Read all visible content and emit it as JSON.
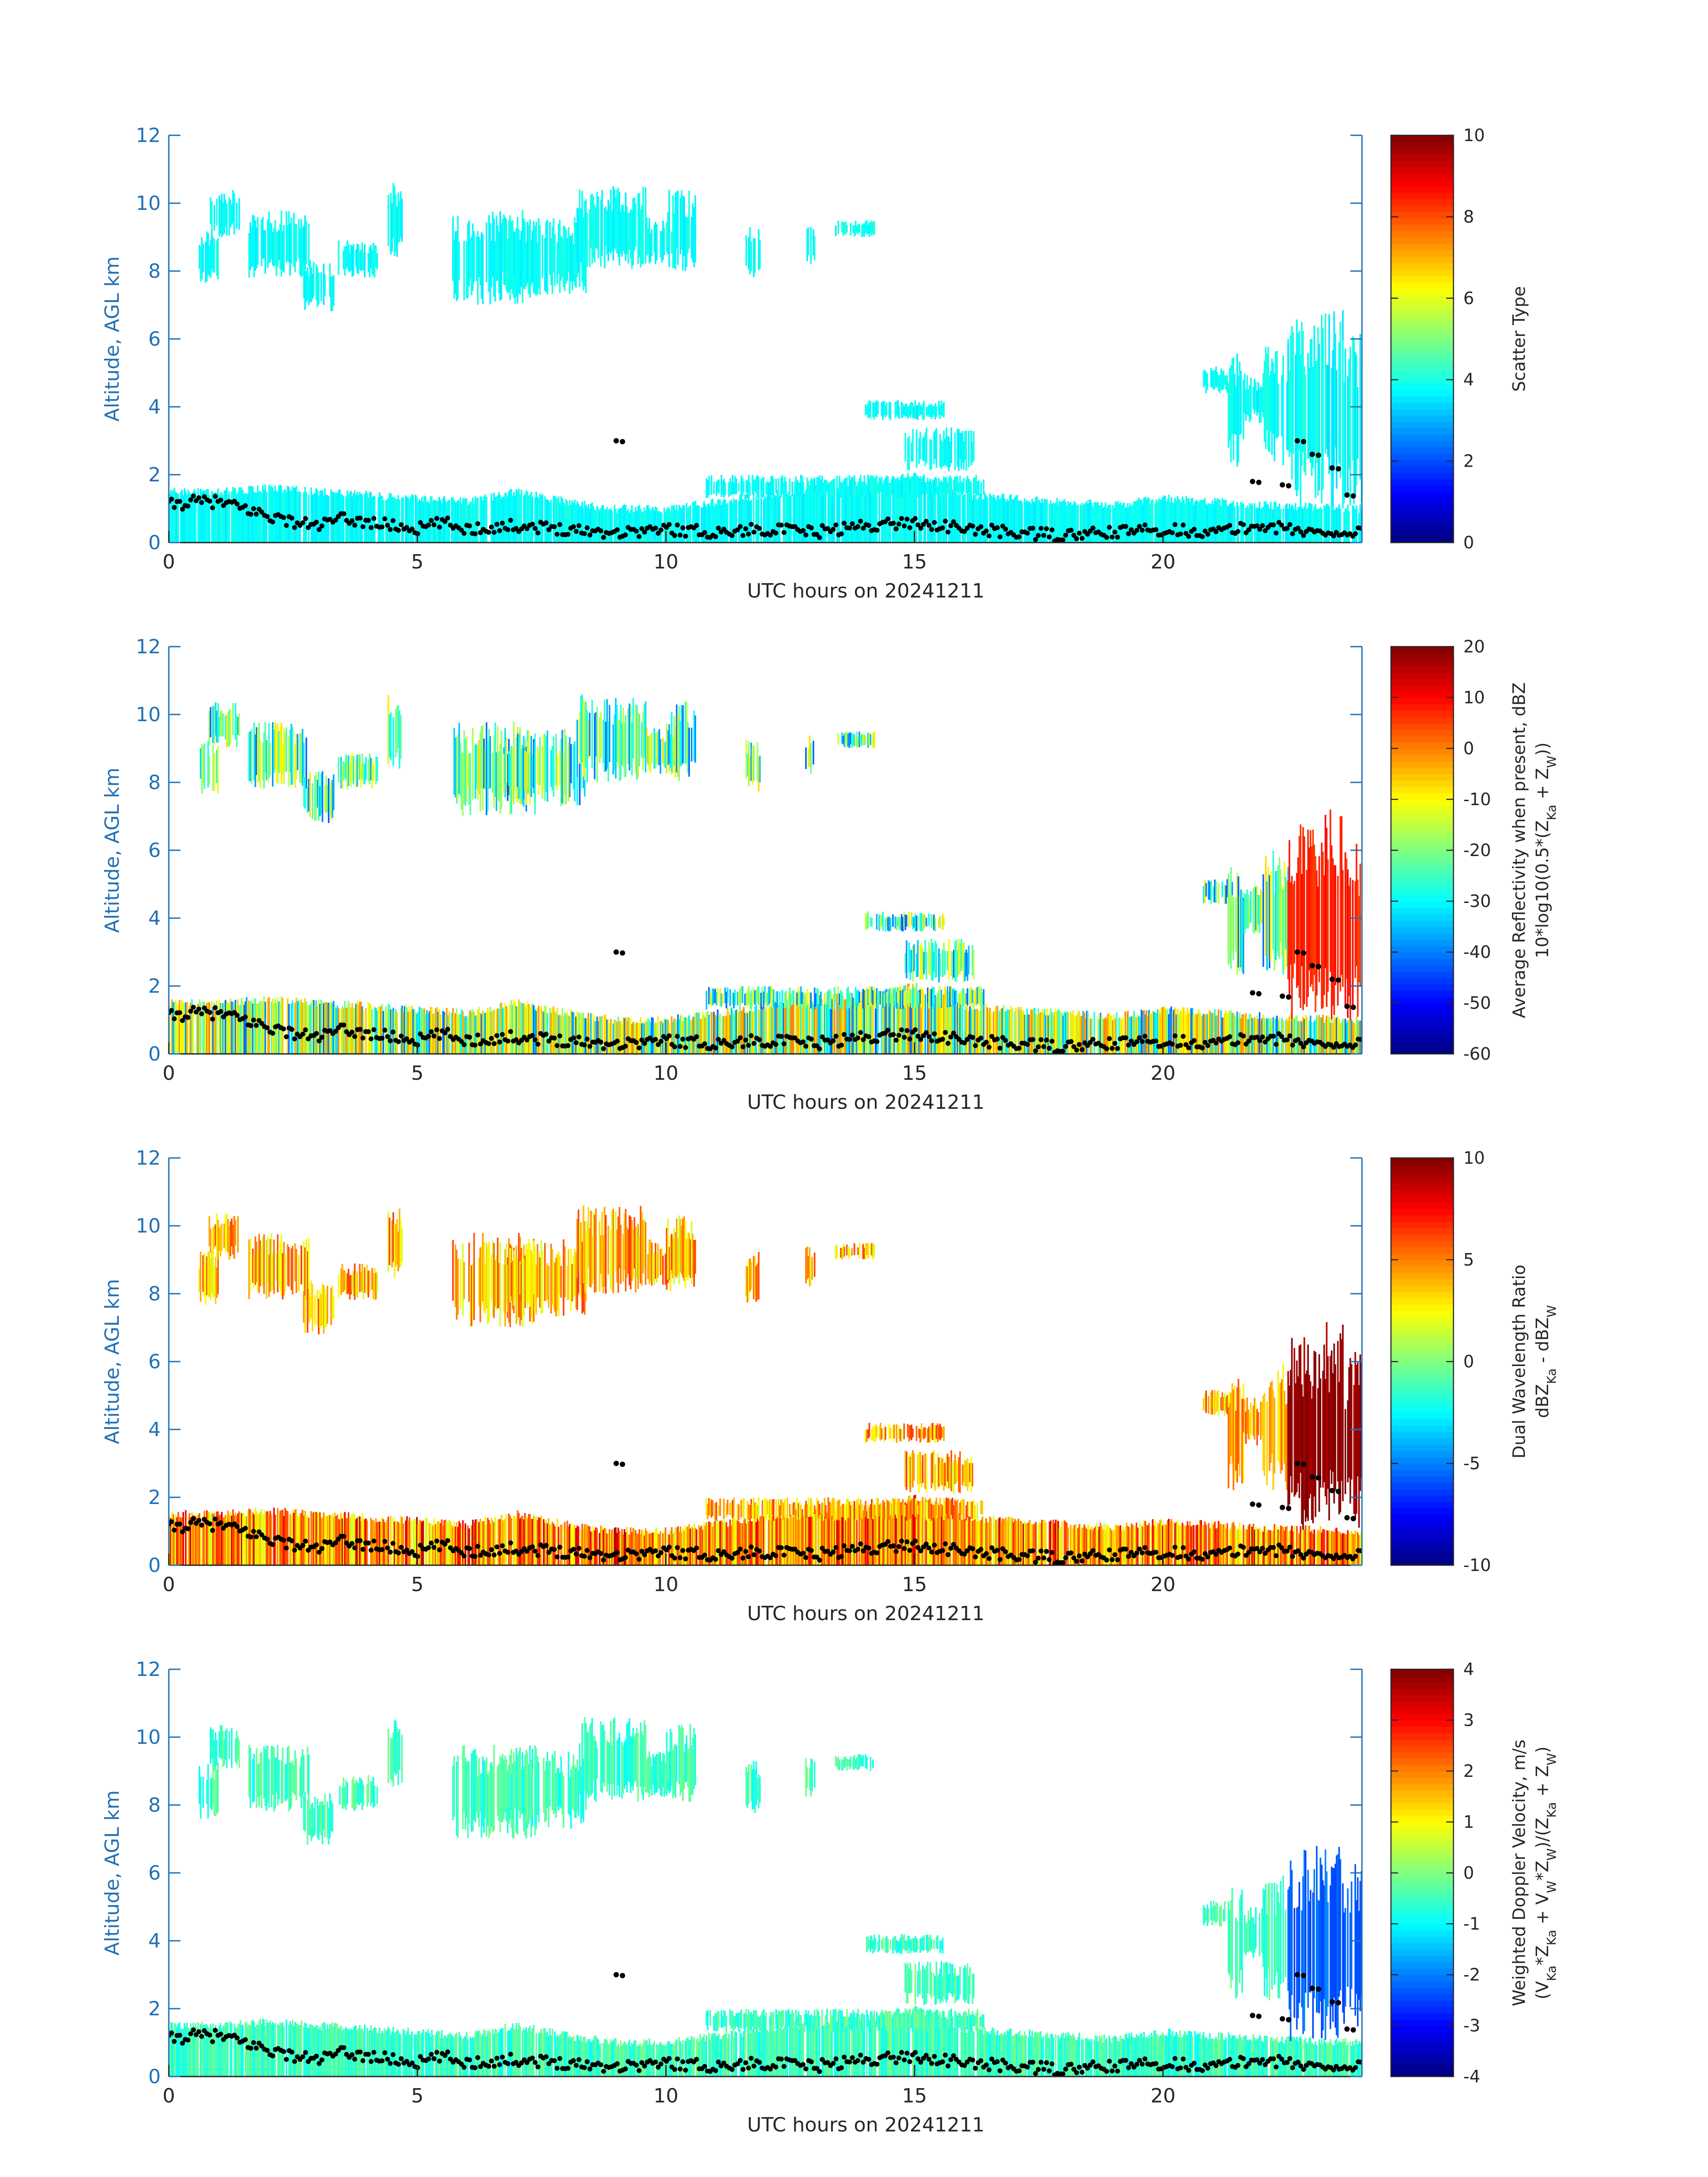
{
  "chart_data": [
    {
      "type": "heatmap",
      "xlabel": "UTC hours on 20241211",
      "ylabel": "Altitude, AGL km",
      "xlim": [
        0,
        24
      ],
      "ylim": [
        0,
        12
      ],
      "xticks": [
        "0",
        "5",
        "10",
        "15",
        "20"
      ],
      "yticks": [
        "0",
        "2",
        "4",
        "6",
        "8",
        "10",
        "12"
      ],
      "colormap": "jet",
      "colorbar_label_lines": [
        "Scatter Type"
      ],
      "colorbar_range": [
        0,
        10
      ],
      "colorbar_ticks": [
        "0",
        "2",
        "4",
        "6",
        "8",
        "10"
      ],
      "typical_value": 3.8,
      "fill_variability": 0.05,
      "high_event_value": 3.8
    },
    {
      "type": "heatmap",
      "xlabel": "UTC hours on 20241211",
      "ylabel": "Altitude, AGL km",
      "xlim": [
        0,
        24
      ],
      "ylim": [
        0,
        12
      ],
      "xticks": [
        "0",
        "5",
        "10",
        "15",
        "20"
      ],
      "yticks": [
        "0",
        "2",
        "4",
        "6",
        "8",
        "10",
        "12"
      ],
      "colormap": "jet",
      "colorbar_label_lines": [
        "Average Reflectivity when present, dBZ",
        "10*log10(0.5*(Z_Ka + Z_W))"
      ],
      "colorbar_range": [
        -60,
        20
      ],
      "colorbar_ticks": [
        "-60",
        "-50",
        "-40",
        "-30",
        "-20",
        "-10",
        "0",
        "10",
        "20"
      ],
      "typical_value": -25,
      "fill_variability": 0.45,
      "high_event_value": 8
    },
    {
      "type": "heatmap",
      "xlabel": "UTC hours on 20241211",
      "ylabel": "Altitude, AGL km",
      "xlim": [
        0,
        24
      ],
      "ylim": [
        0,
        12
      ],
      "xticks": [
        "0",
        "5",
        "10",
        "15",
        "20"
      ],
      "yticks": [
        "0",
        "2",
        "4",
        "6",
        "8",
        "10",
        "12"
      ],
      "colormap": "jet",
      "colorbar_label_lines": [
        "Dual Wavelength Ratio",
        "dBZ_Ka - dBZ_W"
      ],
      "colorbar_range": [
        -10,
        10
      ],
      "colorbar_ticks": [
        "-10",
        "-5",
        "0",
        "5",
        "10"
      ],
      "typical_value": 4,
      "fill_variability": 0.25,
      "high_event_value": 9.5
    },
    {
      "type": "heatmap",
      "xlabel": "UTC hours on 20241211",
      "ylabel": "Altitude, AGL km",
      "xlim": [
        0,
        24
      ],
      "ylim": [
        0,
        12
      ],
      "xticks": [
        "0",
        "5",
        "10",
        "15",
        "20"
      ],
      "yticks": [
        "0",
        "2",
        "4",
        "6",
        "8",
        "10",
        "12"
      ],
      "colormap": "jet",
      "colorbar_label_lines": [
        "Weighted Doppler Velocity, m/s",
        "(V_Ka*Z_Ka + V_W*Z_W)/(Z_Ka + Z_W)"
      ],
      "colorbar_range": [
        -4,
        4
      ],
      "colorbar_ticks": [
        "-4",
        "-3",
        "-2",
        "-1",
        "0",
        "1",
        "2",
        "3",
        "4"
      ],
      "typical_value": -0.5,
      "fill_variability": 0.12,
      "high_event_value": -2.2
    }
  ],
  "cloud_regions": [
    {
      "t0": 0.6,
      "t1": 1.0,
      "z0": 7.6,
      "z1": 9.3
    },
    {
      "t0": 0.8,
      "t1": 1.4,
      "z0": 9.0,
      "z1": 10.4
    },
    {
      "t0": 1.6,
      "t1": 2.8,
      "z0": 7.8,
      "z1": 9.8
    },
    {
      "t0": 2.7,
      "t1": 3.3,
      "z0": 6.8,
      "z1": 8.4
    },
    {
      "t0": 3.4,
      "t1": 4.2,
      "z0": 7.8,
      "z1": 8.9
    },
    {
      "t0": 4.4,
      "t1": 4.7,
      "z0": 8.4,
      "z1": 10.6
    },
    {
      "t0": 5.7,
      "t1": 7.4,
      "z0": 7.0,
      "z1": 9.8
    },
    {
      "t0": 6.7,
      "t1": 8.4,
      "z0": 7.3,
      "z1": 9.6
    },
    {
      "t0": 8.2,
      "t1": 9.6,
      "z0": 8.0,
      "z1": 10.6
    },
    {
      "t0": 9.6,
      "t1": 10.2,
      "z0": 8.2,
      "z1": 9.6
    },
    {
      "t0": 10.0,
      "t1": 10.6,
      "z0": 8.0,
      "z1": 10.4
    },
    {
      "t0": 11.6,
      "t1": 11.9,
      "z0": 7.7,
      "z1": 9.3
    },
    {
      "t0": 12.8,
      "t1": 13.0,
      "z0": 8.2,
      "z1": 9.4
    },
    {
      "t0": 13.4,
      "t1": 14.2,
      "z0": 9.0,
      "z1": 9.5
    },
    {
      "t0": 14.0,
      "t1": 15.6,
      "z0": 3.6,
      "z1": 4.2
    },
    {
      "t0": 14.8,
      "t1": 16.2,
      "z0": 2.1,
      "z1": 3.4
    },
    {
      "t0": 10.8,
      "t1": 16.4,
      "z0": 1.3,
      "z1": 2.0
    },
    {
      "t0": 20.8,
      "t1": 21.4,
      "z0": 4.4,
      "z1": 5.2
    },
    {
      "t0": 21.3,
      "t1": 21.6,
      "z0": 2.2,
      "z1": 5.6
    },
    {
      "t0": 21.6,
      "t1": 22.0,
      "z0": 3.5,
      "z1": 5.0
    },
    {
      "t0": 22.0,
      "t1": 22.5,
      "z0": 2.2,
      "z1": 6.0
    },
    {
      "t0": 22.5,
      "t1": 23.2,
      "z0": 1.0,
      "z1": 6.8
    },
    {
      "t0": 23.2,
      "t1": 23.6,
      "z0": 1.0,
      "z1": 7.2
    },
    {
      "t0": 23.6,
      "t1": 24.0,
      "z0": 1.0,
      "z1": 6.5
    }
  ],
  "boundary_layer_top_km": [
    {
      "t": 0.0,
      "z": 1.5
    },
    {
      "t": 1.0,
      "z": 1.5
    },
    {
      "t": 2.0,
      "z": 1.6
    },
    {
      "t": 3.0,
      "z": 1.5
    },
    {
      "t": 4.0,
      "z": 1.4
    },
    {
      "t": 5.0,
      "z": 1.3
    },
    {
      "t": 6.0,
      "z": 1.2
    },
    {
      "t": 7.0,
      "z": 1.5
    },
    {
      "t": 8.0,
      "z": 1.2
    },
    {
      "t": 9.0,
      "z": 1.0
    },
    {
      "t": 10.0,
      "z": 1.0
    },
    {
      "t": 11.0,
      "z": 1.2
    },
    {
      "t": 12.0,
      "z": 1.4
    },
    {
      "t": 13.0,
      "z": 1.6
    },
    {
      "t": 14.0,
      "z": 1.7
    },
    {
      "t": 15.0,
      "z": 2.0
    },
    {
      "t": 16.0,
      "z": 1.4
    },
    {
      "t": 17.0,
      "z": 1.3
    },
    {
      "t": 18.0,
      "z": 1.2
    },
    {
      "t": 19.0,
      "z": 1.1
    },
    {
      "t": 20.0,
      "z": 1.3
    },
    {
      "t": 21.0,
      "z": 1.2
    },
    {
      "t": 22.0,
      "z": 1.1
    },
    {
      "t": 24.0,
      "z": 1.0
    }
  ],
  "cloud_base_km": [
    {
      "t": 0.0,
      "z": 1.1
    },
    {
      "t": 0.5,
      "z": 1.2
    },
    {
      "t": 1.0,
      "z": 1.2
    },
    {
      "t": 1.5,
      "z": 1.0
    },
    {
      "t": 2.0,
      "z": 0.8
    },
    {
      "t": 2.5,
      "z": 0.6
    },
    {
      "t": 3.0,
      "z": 0.5
    },
    {
      "t": 3.5,
      "z": 0.7
    },
    {
      "t": 4.0,
      "z": 0.6
    },
    {
      "t": 4.5,
      "z": 0.5
    },
    {
      "t": 5.0,
      "z": 0.4
    },
    {
      "t": 5.5,
      "z": 0.6
    },
    {
      "t": 6.0,
      "z": 0.4
    },
    {
      "t": 7.0,
      "z": 0.5
    },
    {
      "t": 8.0,
      "z": 0.4
    },
    {
      "t": 9.0,
      "z": 0.3
    },
    {
      "t": 10.0,
      "z": 0.4
    },
    {
      "t": 11.0,
      "z": 0.3
    },
    {
      "t": 12.0,
      "z": 0.4
    },
    {
      "t": 13.0,
      "z": 0.3
    },
    {
      "t": 14.0,
      "z": 0.5
    },
    {
      "t": 15.0,
      "z": 0.6
    },
    {
      "t": 16.0,
      "z": 0.4
    },
    {
      "t": 17.0,
      "z": 0.3
    },
    {
      "t": 18.0,
      "z": 0.2
    },
    {
      "t": 19.0,
      "z": 0.3
    },
    {
      "t": 20.0,
      "z": 0.4
    },
    {
      "t": 21.0,
      "z": 0.3
    },
    {
      "t": 22.0,
      "z": 0.5
    },
    {
      "t": 23.0,
      "z": 0.3
    },
    {
      "t": 24.0,
      "z": 0.3
    }
  ],
  "elevated_marker_points": [
    {
      "t": 9.0,
      "z": 3.0
    },
    {
      "t": 21.8,
      "z": 1.8
    },
    {
      "t": 22.4,
      "z": 1.7
    },
    {
      "t": 23.0,
      "z": 2.6
    },
    {
      "t": 23.4,
      "z": 2.2
    },
    {
      "t": 23.7,
      "z": 1.4
    },
    {
      "t": 22.7,
      "z": 3.0
    }
  ]
}
